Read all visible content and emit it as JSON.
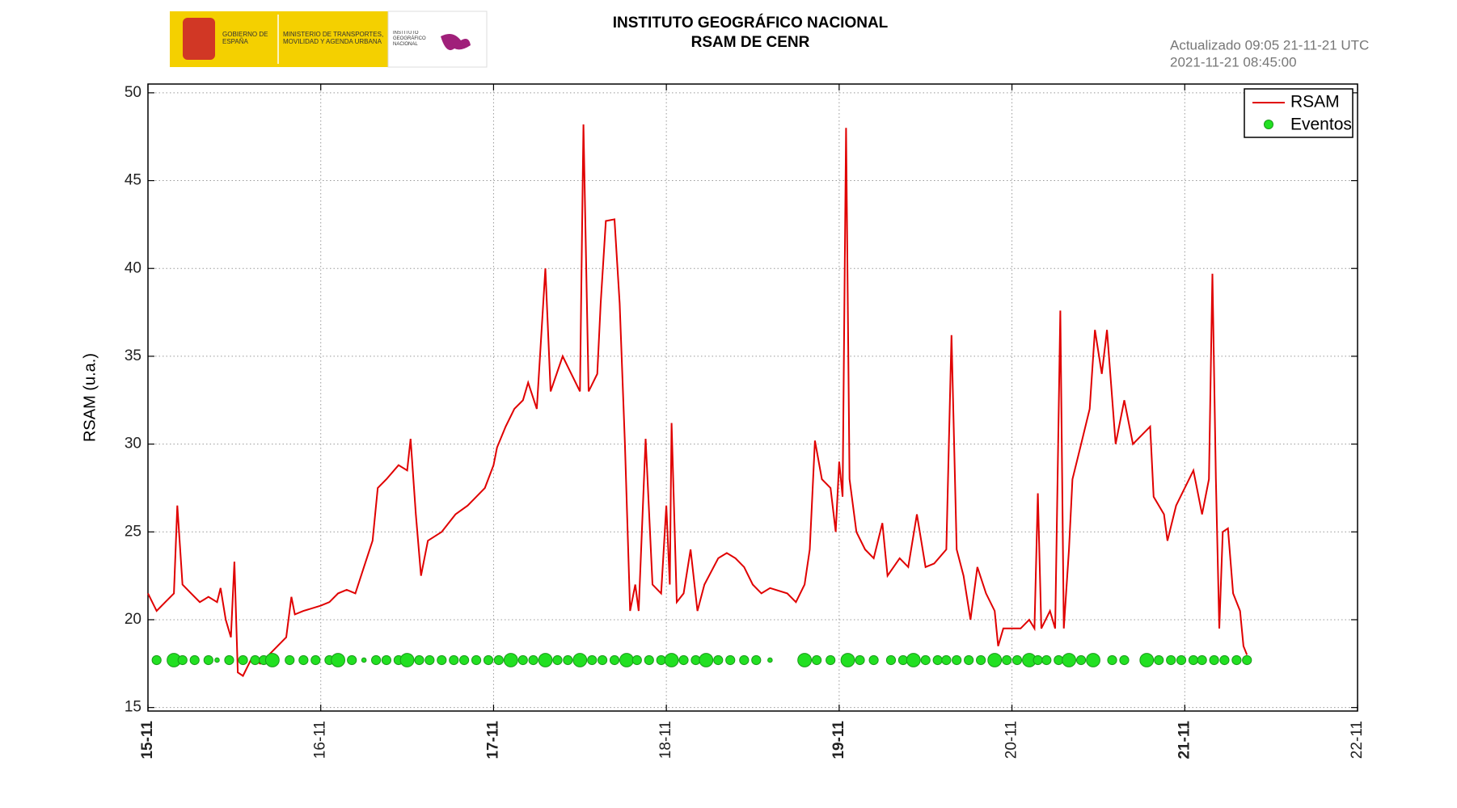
{
  "header": {
    "logo_gobierno": "GOBIERNO DE ESPAÑA",
    "logo_ministerio": "MINISTERIO DE TRANSPORTES, MOVILIDAD Y AGENDA URBANA",
    "logo_ign": "INSTITUTO GEOGRÁFICO NACIONAL",
    "updated": "Actualizado 09:05 21-11-21 UTC",
    "timestamp": "2021-11-21 08:45:00"
  },
  "chart_data": {
    "type": "line",
    "title": "INSTITUTO GEOGRÁFICO NACIONAL",
    "subtitle": "RSAM DE CENR",
    "y_label": "RSAM (u.a.)",
    "xlim": [
      15,
      22
    ],
    "xticks": [
      {
        "value": 15,
        "label": "15-11"
      },
      {
        "value": 16,
        "label": "16-11"
      },
      {
        "value": 17,
        "label": "17-11"
      },
      {
        "value": 18,
        "label": "18-11"
      },
      {
        "value": 19,
        "label": "19-11"
      },
      {
        "value": 20,
        "label": "20-11"
      },
      {
        "value": 21,
        "label": "21-11"
      },
      {
        "value": 22,
        "label": "22-11"
      }
    ],
    "ylim": [
      14.8,
      50.5
    ],
    "yticks": [
      15,
      20,
      25,
      30,
      35,
      40,
      45,
      50
    ],
    "grid": true,
    "legend": "upper right",
    "series": [
      {
        "name": "RSAM",
        "color": "#e00000",
        "x": [
          15.0,
          15.05,
          15.1,
          15.15,
          15.17,
          15.2,
          15.25,
          15.3,
          15.35,
          15.4,
          15.42,
          15.45,
          15.48,
          15.5,
          15.52,
          15.55,
          15.6,
          15.65,
          15.7,
          15.75,
          15.8,
          15.83,
          15.85,
          15.9,
          16.0,
          16.05,
          16.1,
          16.15,
          16.2,
          16.25,
          16.3,
          16.33,
          16.38,
          16.45,
          16.5,
          16.52,
          16.55,
          16.58,
          16.62,
          16.7,
          16.78,
          16.85,
          16.9,
          16.95,
          17.0,
          17.02,
          17.07,
          17.12,
          17.17,
          17.2,
          17.25,
          17.3,
          17.33,
          17.4,
          17.45,
          17.5,
          17.52,
          17.55,
          17.6,
          17.62,
          17.65,
          17.7,
          17.73,
          17.76,
          17.79,
          17.82,
          17.84,
          17.88,
          17.92,
          17.97,
          18.0,
          18.02,
          18.03,
          18.06,
          18.1,
          18.14,
          18.18,
          18.22,
          18.3,
          18.35,
          18.4,
          18.45,
          18.5,
          18.55,
          18.6,
          18.7,
          18.75,
          18.8,
          18.83,
          18.86,
          18.9,
          18.95,
          18.98,
          19.0,
          19.02,
          19.04,
          19.06,
          19.1,
          19.15,
          19.2,
          19.25,
          19.28,
          19.35,
          19.4,
          19.45,
          19.5,
          19.55,
          19.62,
          19.65,
          19.68,
          19.72,
          19.76,
          19.8,
          19.85,
          19.9,
          19.92,
          19.95,
          20.0,
          20.05,
          20.1,
          20.13,
          20.15,
          20.17,
          20.22,
          20.25,
          20.28,
          20.3,
          20.33,
          20.35,
          20.4,
          20.45,
          20.48,
          20.52,
          20.55,
          20.6,
          20.65,
          20.7,
          20.75,
          20.8,
          20.82,
          20.88,
          20.9,
          20.95,
          21.0,
          21.05,
          21.1,
          21.14,
          21.16,
          21.18,
          21.2,
          21.22,
          21.25,
          21.28,
          21.32,
          21.34,
          21.36
        ],
        "values": [
          21.5,
          20.5,
          21,
          21.5,
          26.5,
          22,
          21.5,
          21,
          21.3,
          21,
          21.8,
          20,
          19,
          23.3,
          17,
          16.8,
          17.8,
          17.5,
          18,
          18.5,
          19,
          21.3,
          20.3,
          20.5,
          20.8,
          21,
          21.5,
          21.7,
          21.5,
          23,
          24.5,
          27.5,
          28,
          28.8,
          28.5,
          30.3,
          26,
          22.5,
          24.5,
          25,
          26,
          26.5,
          27,
          27.5,
          28.8,
          29.8,
          31,
          32,
          32.5,
          33.5,
          32,
          40,
          33,
          35,
          34,
          33,
          48.2,
          33,
          34,
          38,
          42.7,
          42.8,
          38,
          30,
          20.5,
          22,
          20.5,
          30.3,
          22,
          21.5,
          26.5,
          22,
          31.2,
          21,
          21.5,
          24,
          20.5,
          22,
          23.5,
          23.8,
          23.5,
          23,
          22,
          21.5,
          21.8,
          21.5,
          21,
          22,
          24,
          30.2,
          28,
          27.5,
          25,
          29,
          27,
          48,
          28,
          25,
          24,
          23.5,
          25.5,
          22.5,
          23.5,
          23,
          26,
          23,
          23.2,
          24,
          36.2,
          24,
          22.5,
          20,
          23,
          21.5,
          20.5,
          18.5,
          19.5,
          19.5,
          19.5,
          20,
          19.5,
          27.2,
          19.5,
          20.5,
          19.5,
          37.6,
          19.5,
          24,
          28,
          30,
          32,
          36.5,
          34,
          36.5,
          30,
          32.5,
          30,
          30.5,
          31,
          27,
          26,
          24.5,
          26.5,
          27.5,
          28.5,
          26,
          28,
          39.7,
          28,
          19.5,
          25,
          25.2,
          21.5,
          20.5,
          18.5,
          18
        ]
      },
      {
        "name": "Eventos",
        "color": "#22e022",
        "x": [
          15.05,
          15.15,
          15.2,
          15.27,
          15.35,
          15.4,
          15.47,
          15.55,
          15.62,
          15.67,
          15.72,
          15.82,
          15.9,
          15.97,
          16.05,
          16.1,
          16.18,
          16.25,
          16.32,
          16.38,
          16.45,
          16.5,
          16.57,
          16.63,
          16.7,
          16.77,
          16.83,
          16.9,
          16.97,
          17.03,
          17.1,
          17.17,
          17.23,
          17.3,
          17.37,
          17.43,
          17.5,
          17.57,
          17.63,
          17.7,
          17.77,
          17.83,
          17.9,
          17.97,
          18.03,
          18.1,
          18.17,
          18.23,
          18.3,
          18.37,
          18.45,
          18.52,
          18.6,
          18.8,
          18.87,
          18.95,
          19.05,
          19.12,
          19.2,
          19.3,
          19.37,
          19.43,
          19.5,
          19.57,
          19.62,
          19.68,
          19.75,
          19.82,
          19.9,
          19.97,
          20.03,
          20.1,
          20.15,
          20.2,
          20.27,
          20.33,
          20.4,
          20.47,
          20.58,
          20.65,
          20.78,
          20.85,
          20.92,
          20.98,
          21.05,
          21.1,
          21.17,
          21.23,
          21.3,
          21.36
        ],
        "values": [
          17.7,
          17.7,
          17.7,
          17.7,
          17.7,
          17.7,
          17.7,
          17.7,
          17.7,
          17.7,
          17.7,
          17.7,
          17.7,
          17.7,
          17.7,
          17.7,
          17.7,
          17.7,
          17.7,
          17.7,
          17.7,
          17.7,
          17.7,
          17.7,
          17.7,
          17.7,
          17.7,
          17.7,
          17.7,
          17.7,
          17.7,
          17.7,
          17.7,
          17.7,
          17.7,
          17.7,
          17.7,
          17.7,
          17.7,
          17.7,
          17.7,
          17.7,
          17.7,
          17.7,
          17.7,
          17.7,
          17.7,
          17.7,
          17.7,
          17.7,
          17.7,
          17.7,
          17.7,
          17.7,
          17.7,
          17.7,
          17.7,
          17.7,
          17.7,
          17.7,
          17.7,
          17.7,
          17.7,
          17.7,
          17.7,
          17.7,
          17.7,
          17.7,
          17.7,
          17.7,
          17.7,
          17.7,
          17.7,
          17.7,
          17.7,
          17.7,
          17.7,
          17.7,
          17.7,
          17.7,
          17.7,
          17.7,
          17.7,
          17.7,
          17.7,
          17.7,
          17.7,
          17.7,
          17.7,
          17.7
        ],
        "sizes": [
          2,
          3,
          2,
          2,
          2,
          1,
          2,
          2,
          2,
          2,
          3,
          2,
          2,
          2,
          2,
          3,
          2,
          1,
          2,
          2,
          2,
          3,
          2,
          2,
          2,
          2,
          2,
          2,
          2,
          2,
          3,
          2,
          2,
          3,
          2,
          2,
          3,
          2,
          2,
          2,
          3,
          2,
          2,
          2,
          3,
          2,
          2,
          3,
          2,
          2,
          2,
          2,
          1,
          3,
          2,
          2,
          3,
          2,
          2,
          2,
          2,
          3,
          2,
          2,
          2,
          2,
          2,
          2,
          3,
          2,
          2,
          3,
          2,
          2,
          2,
          3,
          2,
          3,
          2,
          2,
          3,
          2,
          2,
          2,
          2,
          2,
          2,
          2,
          2,
          2
        ]
      }
    ]
  }
}
